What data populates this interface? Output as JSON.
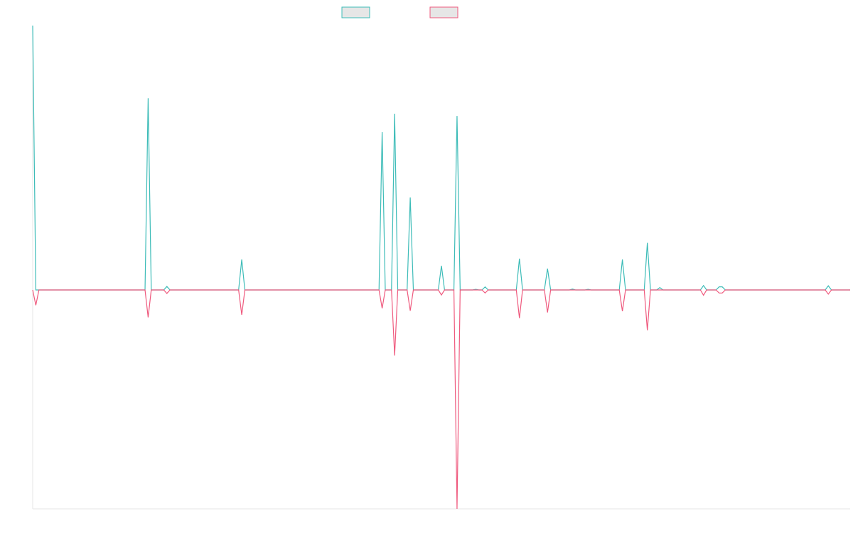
{
  "chart_data": {
    "type": "line",
    "title": "",
    "xlabel": "",
    "ylabel": "",
    "ylim": [
      -100,
      120
    ],
    "x_count": 131,
    "grid": false,
    "legend_position": "top-center",
    "colors": {
      "series_a": "#3dbcb8",
      "series_b": "#ef5a7e",
      "axis": "#e6e6e6",
      "legend_fill": "#e6e6e6"
    },
    "series": [
      {
        "color": "#3dbcb8",
        "points": [
          [
            0,
            120
          ],
          [
            0.5,
            0
          ],
          [
            18,
            0
          ],
          [
            18.5,
            87
          ],
          [
            19,
            0
          ],
          [
            21,
            0
          ],
          [
            21.5,
            1.6
          ],
          [
            22,
            0
          ],
          [
            33,
            0
          ],
          [
            33.5,
            13.8
          ],
          [
            34,
            0
          ],
          [
            55.5,
            0
          ],
          [
            56,
            71.6
          ],
          [
            56.5,
            0
          ],
          [
            57.5,
            0
          ],
          [
            58,
            80
          ],
          [
            58.5,
            0
          ],
          [
            60,
            0
          ],
          [
            60.5,
            42
          ],
          [
            61,
            0
          ],
          [
            65,
            0
          ],
          [
            65.5,
            11
          ],
          [
            66,
            0
          ],
          [
            67.5,
            0
          ],
          [
            68,
            79
          ],
          [
            68.5,
            0
          ],
          [
            70.5,
            0
          ],
          [
            71,
            0.3
          ],
          [
            71.5,
            0
          ],
          [
            72,
            0
          ],
          [
            72.5,
            1.4
          ],
          [
            73,
            0
          ],
          [
            77.5,
            0
          ],
          [
            78,
            14.2
          ],
          [
            78.5,
            0
          ],
          [
            82,
            0
          ],
          [
            82.5,
            9.7
          ],
          [
            83,
            0
          ],
          [
            86,
            0
          ],
          [
            86.5,
            0.4
          ],
          [
            87,
            0
          ],
          [
            88.5,
            0
          ],
          [
            89,
            0.3
          ],
          [
            89.5,
            0
          ],
          [
            94,
            0
          ],
          [
            94.5,
            13.8
          ],
          [
            95,
            0
          ],
          [
            98,
            0
          ],
          [
            98.5,
            21.4
          ],
          [
            99,
            0
          ],
          [
            100,
            0
          ],
          [
            100.5,
            1.1
          ],
          [
            101,
            0
          ],
          [
            107,
            0
          ],
          [
            107.5,
            2
          ],
          [
            108,
            0
          ],
          [
            109.5,
            0
          ],
          [
            110,
            1.4
          ],
          [
            110.5,
            1.4
          ],
          [
            111,
            0
          ],
          [
            127,
            0
          ],
          [
            127.5,
            1.9
          ],
          [
            128,
            0
          ],
          [
            131,
            0
          ]
        ]
      },
      {
        "color": "#ef5a7e",
        "points": [
          [
            0,
            0
          ],
          [
            0.5,
            -7
          ],
          [
            1,
            0
          ],
          [
            18,
            0
          ],
          [
            18.5,
            -12.5
          ],
          [
            19,
            0
          ],
          [
            21,
            0
          ],
          [
            21.5,
            -1.6
          ],
          [
            22,
            0
          ],
          [
            33,
            0
          ],
          [
            33.5,
            -11.4
          ],
          [
            34,
            0
          ],
          [
            55.5,
            0
          ],
          [
            56,
            -8.4
          ],
          [
            56.5,
            0
          ],
          [
            57.5,
            0
          ],
          [
            58,
            -30
          ],
          [
            58.5,
            0
          ],
          [
            60,
            0
          ],
          [
            60.5,
            -9.5
          ],
          [
            61,
            0
          ],
          [
            65,
            0
          ],
          [
            65.5,
            -2.3
          ],
          [
            66,
            0
          ],
          [
            67.5,
            0
          ],
          [
            68,
            -100
          ],
          [
            68.5,
            0
          ],
          [
            72,
            0
          ],
          [
            72.5,
            -1.4
          ],
          [
            73,
            0
          ],
          [
            77.5,
            0
          ],
          [
            78,
            -12.9
          ],
          [
            78.5,
            0
          ],
          [
            82,
            0
          ],
          [
            82.5,
            -10.3
          ],
          [
            83,
            0
          ],
          [
            94,
            0
          ],
          [
            94.5,
            -9.7
          ],
          [
            95,
            0
          ],
          [
            98,
            0
          ],
          [
            98.5,
            -18.4
          ],
          [
            99,
            0
          ],
          [
            107,
            0
          ],
          [
            107.5,
            -2.4
          ],
          [
            108,
            0
          ],
          [
            109.5,
            0
          ],
          [
            110,
            -1.4
          ],
          [
            110.5,
            -1.4
          ],
          [
            111,
            0
          ],
          [
            127,
            0
          ],
          [
            127.5,
            -1.9
          ],
          [
            128,
            0
          ],
          [
            131,
            0
          ]
        ]
      }
    ]
  }
}
